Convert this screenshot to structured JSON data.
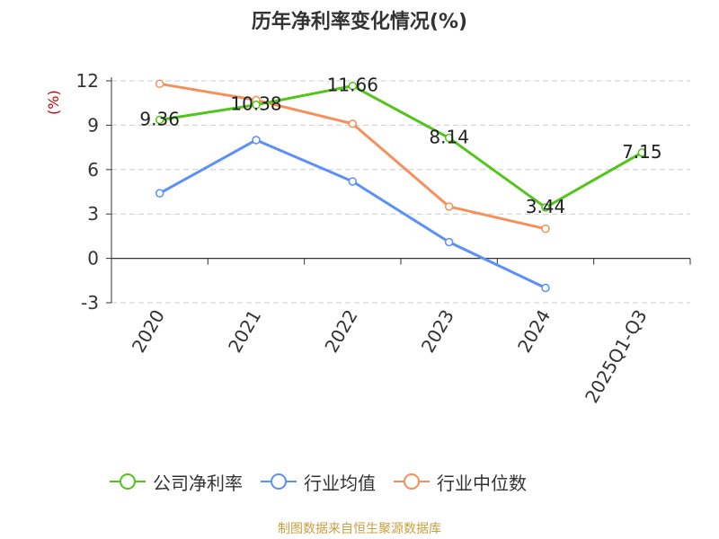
{
  "title": "历年净利率变化情况(%)",
  "source": "制图数据来自恒生聚源数据库",
  "chart_data": {
    "type": "line",
    "title": "历年净利率变化情况(%)",
    "ylabel": "(%)",
    "categories": [
      "2020",
      "2021",
      "2022",
      "2023",
      "2024",
      "2025Q1-Q3"
    ],
    "y_ticks": [
      12,
      9,
      6,
      3,
      0,
      -3
    ],
    "ylim": [
      -3,
      12
    ],
    "grid": "horizontal dashed",
    "legend_position": "bottom",
    "series": [
      {
        "name": "公司净利率",
        "color": "#52c41a",
        "values": [
          9.36,
          10.38,
          11.66,
          8.14,
          3.44,
          7.15
        ],
        "labels": [
          "9.36",
          "10.38",
          "11.66",
          "8.14",
          "3.44",
          "7.15"
        ]
      },
      {
        "name": "行业均值",
        "color": "#5b8ff9",
        "values": [
          4.4,
          8.0,
          5.2,
          1.1,
          -2.0,
          null
        ]
      },
      {
        "name": "行业中位数",
        "color": "#f6905a",
        "values": [
          11.8,
          10.7,
          9.1,
          3.5,
          2.0,
          null
        ]
      }
    ]
  }
}
